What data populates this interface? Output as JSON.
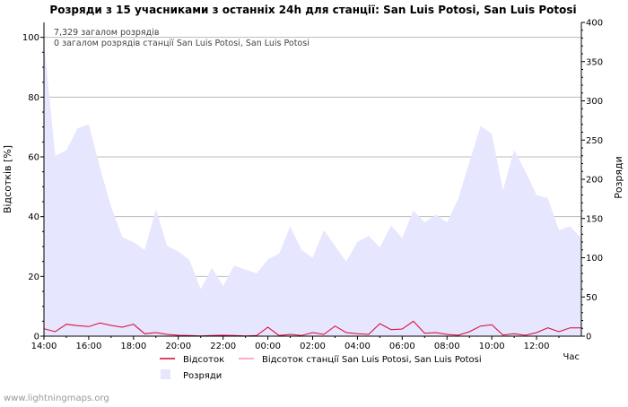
{
  "chart_data": {
    "type": "area",
    "title": "Розряди з 15 учасниками з останніх 24h для станції: San Luis Potosi, San Luis Potosi",
    "xlabel": "Час",
    "ylabel_left": "Відсотків  [%]",
    "ylabel_right": "Розряди",
    "ylim_left": [
      0,
      105
    ],
    "ylim_right": [
      0,
      400
    ],
    "yticks_left": [
      0,
      20,
      40,
      60,
      80,
      100
    ],
    "yticks_right": [
      0,
      50,
      100,
      150,
      200,
      250,
      300,
      350,
      400
    ],
    "x_hours": [
      0,
      0.5,
      1,
      1.5,
      2,
      2.5,
      3,
      3.5,
      4,
      4.5,
      5,
      5.5,
      6,
      6.5,
      7,
      7.5,
      8,
      8.5,
      9,
      9.5,
      10,
      10.5,
      11,
      11.5,
      12,
      12.5,
      13,
      13.5,
      14,
      14.5,
      15,
      15.5,
      16,
      16.5,
      17,
      17.5,
      18,
      18.5,
      19,
      19.5,
      20,
      20.5,
      21,
      21.5,
      22,
      22.5,
      23,
      23.5,
      24
    ],
    "xtick_labels": [
      "14:00",
      "16:00",
      "18:00",
      "20:00",
      "22:00",
      "00:00",
      "02:00",
      "04:00",
      "06:00",
      "08:00",
      "10:00",
      "12:00"
    ],
    "xtick_hours": [
      0,
      2,
      4,
      6,
      8,
      10,
      12,
      14,
      16,
      18,
      20,
      22
    ],
    "series": [
      {
        "name": "Розряди",
        "axis": "right",
        "color": "#e6e6ff",
        "values": [
          375,
          230,
          237,
          265,
          270,
          215,
          165,
          126,
          120,
          110,
          162,
          115,
          108,
          97,
          60,
          87,
          64,
          90,
          85,
          80,
          98,
          105,
          140,
          110,
          100,
          135,
          115,
          95,
          120,
          128,
          113,
          141,
          125,
          160,
          145,
          155,
          145,
          175,
          222,
          268,
          258,
          186,
          237,
          210,
          180,
          176,
          135,
          140,
          125
        ]
      },
      {
        "name": "Відсоток",
        "axis": "left",
        "color": "#dd0033",
        "values": [
          2.5,
          1.5,
          4,
          3.5,
          3.2,
          4.4,
          3.6,
          3,
          4,
          0.8,
          1.2,
          0.6,
          0.3,
          0.2,
          0.1,
          0.2,
          0.3,
          0.2,
          0.1,
          0.2,
          3,
          0.2,
          0.6,
          0.2,
          1.2,
          0.6,
          3.4,
          1.2,
          0.8,
          0.6,
          4.2,
          2.2,
          2.4,
          5,
          1,
          1.2,
          0.6,
          0.3,
          1.5,
          3.4,
          3.8,
          0.4,
          0.8,
          0.3,
          1.2,
          2.8,
          1.5,
          2.8,
          2.8
        ]
      },
      {
        "name": "Відсоток станції San Luis Potosi, San Luis Potosi",
        "axis": "left",
        "color": "#ff8fb1",
        "values": []
      }
    ],
    "annotations": [
      "7,329 загалом розрядів",
      "0 загалом розрядів станції San Luis Potosi, San Luis Potosi"
    ],
    "legend": {
      "position": "bottom",
      "items": [
        "Відсоток",
        "Відсоток станції San Luis Potosi, San Luis Potosi",
        "Розряди"
      ]
    }
  },
  "footer": {
    "credit": "www.lightningmaps.org"
  },
  "colors": {
    "background": "#ffffff",
    "grid": "#bbbbbb",
    "axis": "#000000",
    "area_fill": "#e6e6ff",
    "percent_line": "#dd0033",
    "station_line": "#ff8fb1",
    "credit_text": "#999999"
  }
}
